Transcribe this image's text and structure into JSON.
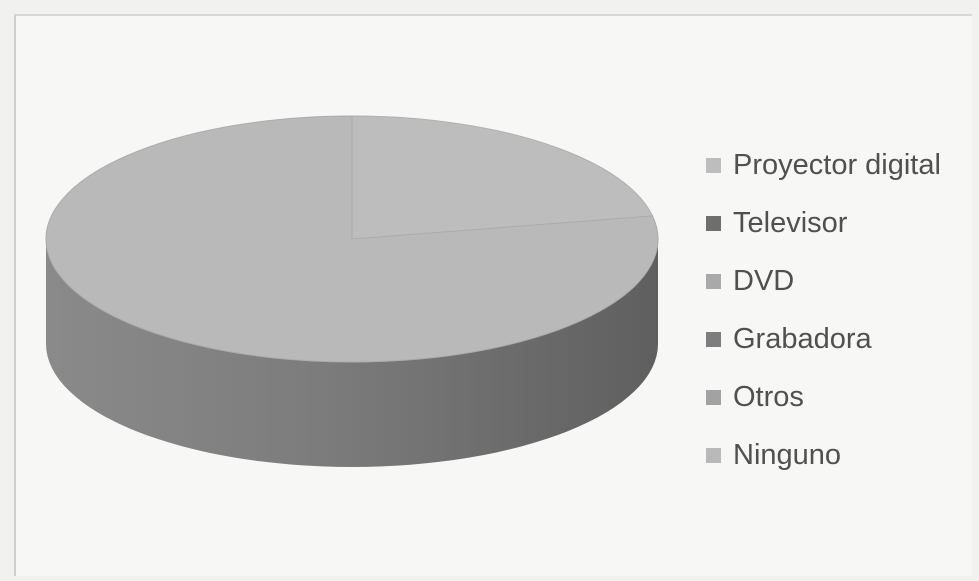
{
  "chart_data": {
    "type": "pie",
    "three_d": true,
    "title": "",
    "categories": [
      "Proyector digital",
      "Televisor",
      "DVD",
      "Grabadora",
      "Otros",
      "Ninguno"
    ],
    "values": [
      22,
      0,
      0,
      0,
      0,
      78
    ],
    "legend_position": "right",
    "colors": [
      "#bdbdbd",
      "#6e6e6e",
      "#a9a9a9",
      "#7d7d7d",
      "#a2a2a2",
      "#b9b9b9"
    ]
  }
}
